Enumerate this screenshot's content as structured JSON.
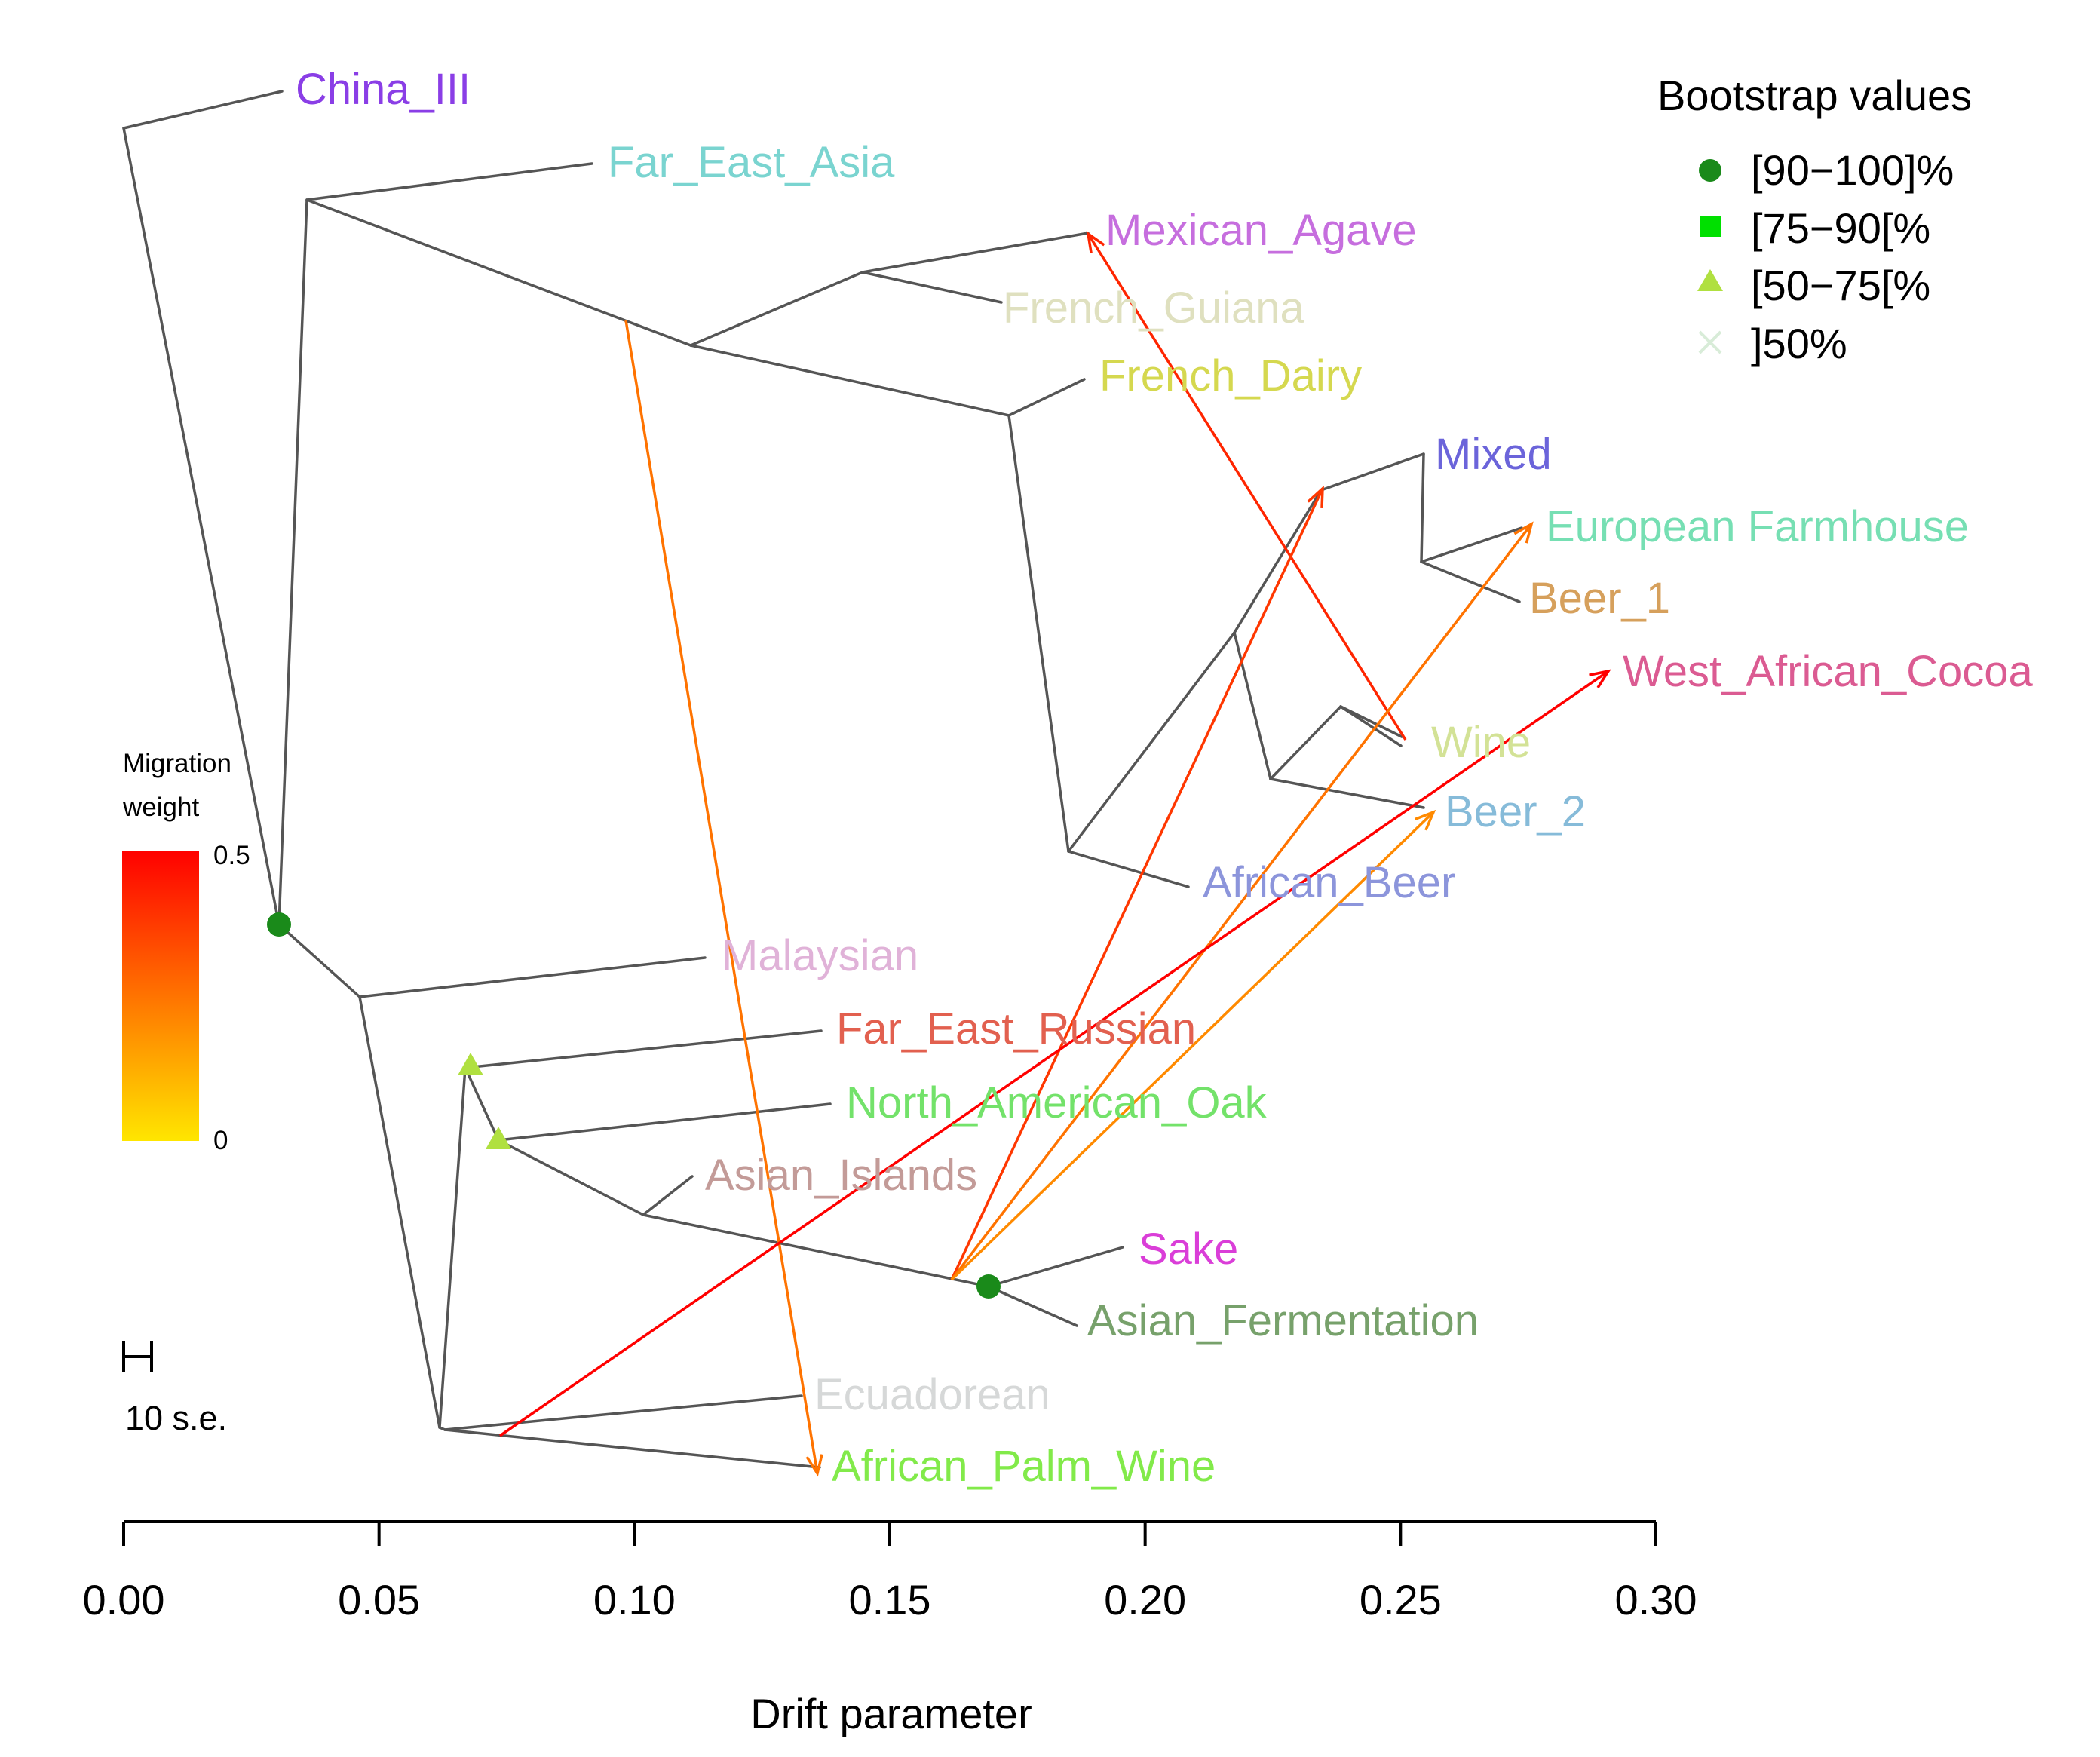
{
  "chart_data": {
    "type": "tree",
    "xlabel": "Drift parameter",
    "xlim": [
      0,
      0.3
    ],
    "xticks": [
      {
        "v": 0.0,
        "label": "0.00"
      },
      {
        "v": 0.05,
        "label": "0.05"
      },
      {
        "v": 0.1,
        "label": "0.10"
      },
      {
        "v": 0.15,
        "label": "0.15"
      },
      {
        "v": 0.2,
        "label": "0.20"
      },
      {
        "v": 0.25,
        "label": "0.25"
      },
      {
        "v": 0.3,
        "label": "0.30"
      }
    ],
    "leaves": [
      {
        "name": "China_III",
        "color": "#8a3ee6"
      },
      {
        "name": "Far_East_Asia",
        "color": "#7ad4d0"
      },
      {
        "name": "Mexican_Agave",
        "color": "#c66ede"
      },
      {
        "name": "French_Guiana",
        "color": "#dfe0bf"
      },
      {
        "name": "French_Dairy",
        "color": "#d5d84f"
      },
      {
        "name": "Mixed",
        "color": "#6b64da"
      },
      {
        "name": "European Farmhouse",
        "color": "#76dfb3"
      },
      {
        "name": "Beer_1",
        "color": "#d6a05c"
      },
      {
        "name": "West_African_Cocoa",
        "color": "#db5b92"
      },
      {
        "name": "Wine",
        "color": "#d3e296"
      },
      {
        "name": "Beer_2",
        "color": "#86bbd9"
      },
      {
        "name": "African_Beer",
        "color": "#8c95db"
      },
      {
        "name": "Malaysian",
        "color": "#e0b2d8"
      },
      {
        "name": "Far_East_Russian",
        "color": "#e2604f"
      },
      {
        "name": "North_American_Oak",
        "color": "#73e26a"
      },
      {
        "name": "Asian_Islands",
        "color": "#c39b98"
      },
      {
        "name": "Sake",
        "color": "#da3ed8"
      },
      {
        "name": "Asian_Fermentation",
        "color": "#77a16b"
      },
      {
        "name": "Ecuadorean",
        "color": "#d6d8d8"
      },
      {
        "name": "African_Palm_Wine",
        "color": "#82ea4a"
      }
    ],
    "migration_events": [
      {
        "from": "Far_East_Asia branch",
        "to": "African_Palm_Wine",
        "weight": 0.25
      },
      {
        "from": "Wine",
        "to": "Mexican_Agave",
        "weight": 0.42
      },
      {
        "from": "Asian_Fermentation branch",
        "to": "Mixed",
        "weight": 0.38
      },
      {
        "from": "Asian_Fermentation branch",
        "to": "European Farmhouse",
        "weight": 0.25
      },
      {
        "from": "Asian_Fermentation branch",
        "to": "Beer_2",
        "weight": 0.2
      },
      {
        "from": "Ecuadorean / African_Palm_Wine branch",
        "to": "West_African_Cocoa",
        "weight": 0.5
      }
    ],
    "bootstrap_nodes": [
      {
        "node": "root",
        "class": "[90-100]%"
      },
      {
        "node": "Sake + Asian_Fermentation",
        "class": "[90-100]%"
      },
      {
        "node": "Far_East_Russian clade",
        "class": "[50-75[%"
      },
      {
        "node": "North_American_Oak clade",
        "class": "[50-75[%"
      }
    ]
  },
  "legend": {
    "title": "Bootstrap values",
    "items": [
      {
        "label": "[90−100]%",
        "shape": "circle",
        "color": "#1a8a1a"
      },
      {
        "label": "[75−90[%",
        "shape": "square",
        "color": "#00e000"
      },
      {
        "label": "[50−75[%",
        "shape": "triangle",
        "color": "#b0e040"
      },
      {
        "label": "]50%",
        "shape": "cross",
        "color": "#d8ecd8"
      }
    ]
  },
  "colorbar": {
    "title_line1": "Migration",
    "title_line2": "weight",
    "max_label": "0.5",
    "min_label": "0",
    "color_high": "#ff0000",
    "color_low": "#ffe600"
  },
  "scale_bar": {
    "label": "10 s.e."
  }
}
